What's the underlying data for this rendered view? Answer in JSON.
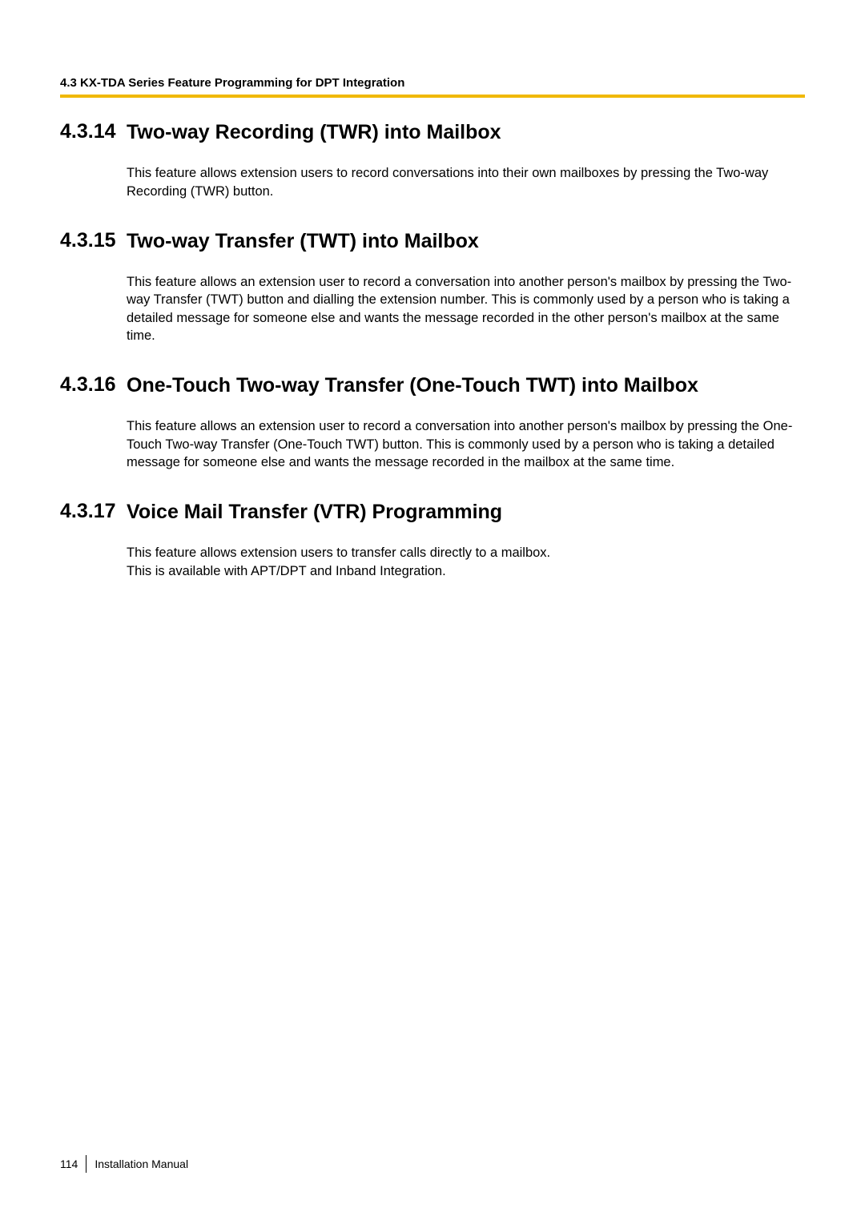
{
  "header": {
    "breadcrumb": "4.3 KX-TDA Series Feature Programming for DPT Integration"
  },
  "sections": [
    {
      "number": "4.3.14",
      "title": "Two-way Recording (TWR) into Mailbox",
      "body": "This feature allows extension users to record conversations into their own mailboxes by pressing the Two-way Recording (TWR) button."
    },
    {
      "number": "4.3.15",
      "title": "Two-way Transfer (TWT) into Mailbox",
      "body": "This feature allows an extension user to record a conversation into another person's mailbox by pressing the Two-way Transfer (TWT) button and dialling the extension number. This is commonly used by a person who is taking a detailed message for someone else and wants the message recorded in the other person's mailbox at the same time."
    },
    {
      "number": "4.3.16",
      "title": "One-Touch Two-way Transfer (One-Touch TWT) into Mailbox",
      "body": "This feature allows an extension user to record a conversation into another person's mailbox by pressing the One-Touch Two-way Transfer (One-Touch TWT) button. This is commonly used by a person who is taking a detailed message for someone else and wants the message recorded in the mailbox at the same time."
    },
    {
      "number": "4.3.17",
      "title": "Voice Mail Transfer (VTR) Programming",
      "body": "This feature allows extension users to transfer calls directly to a mailbox.\nThis is available with APT/DPT and Inband Integration."
    }
  ],
  "footer": {
    "page_number": "114",
    "doc_title": "Installation Manual"
  },
  "styling": {
    "accent_color": "#f0b800",
    "text_color": "#000000",
    "background_color": "#ffffff",
    "heading_fontsize_pt": 19,
    "body_fontsize_pt": 12.5,
    "header_fontsize_pt": 11,
    "footer_fontsize_pt": 10.5
  }
}
